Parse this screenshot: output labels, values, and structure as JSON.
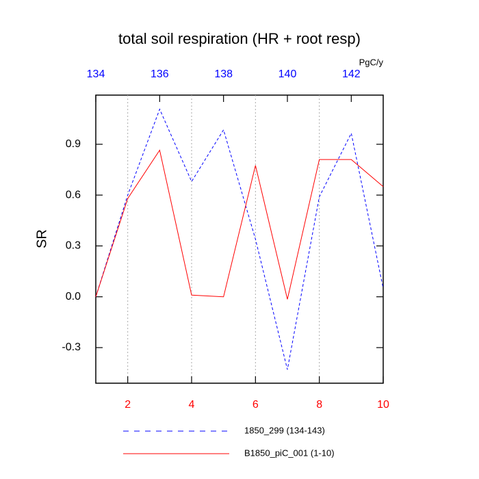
{
  "chart_data": {
    "type": "line",
    "title": "total soil respiration (HR + root resp)",
    "ylabel": "SR",
    "x2_unit": "PgC/y",
    "x": [
      1,
      2,
      3,
      4,
      5,
      6,
      7,
      8,
      9,
      10
    ],
    "x2": [
      134,
      135,
      136,
      137,
      138,
      139,
      140,
      141,
      142,
      143
    ],
    "xlim": [
      1,
      10
    ],
    "xticks": [
      2,
      4,
      6,
      8,
      10
    ],
    "xtick_color": "#ff0000",
    "x2lim": [
      134,
      143
    ],
    "x2ticks": [
      134,
      136,
      138,
      140,
      142
    ],
    "x2tick_color": "#0000ff",
    "ylim": [
      -0.51,
      1.19
    ],
    "yticks": [
      -0.3,
      {
        "value": 0,
        "label": "0.0"
      },
      0.3,
      0.6,
      0.9
    ],
    "grid": "x",
    "series": [
      {
        "name": "1850_299 (134-143)",
        "color": "#0000ff",
        "dash": true,
        "xaxis": "x2",
        "values": [
          0.0,
          0.6,
          1.107,
          0.68,
          0.985,
          0.34,
          -0.43,
          0.59,
          0.965,
          0.05
        ]
      },
      {
        "name": "B1850_piC_001 (1-10)",
        "color": "#ff0000",
        "dash": false,
        "xaxis": "x",
        "values": [
          0.0,
          0.58,
          0.865,
          0.01,
          0.0,
          0.775,
          -0.015,
          0.81,
          0.81,
          0.65
        ]
      }
    ]
  }
}
